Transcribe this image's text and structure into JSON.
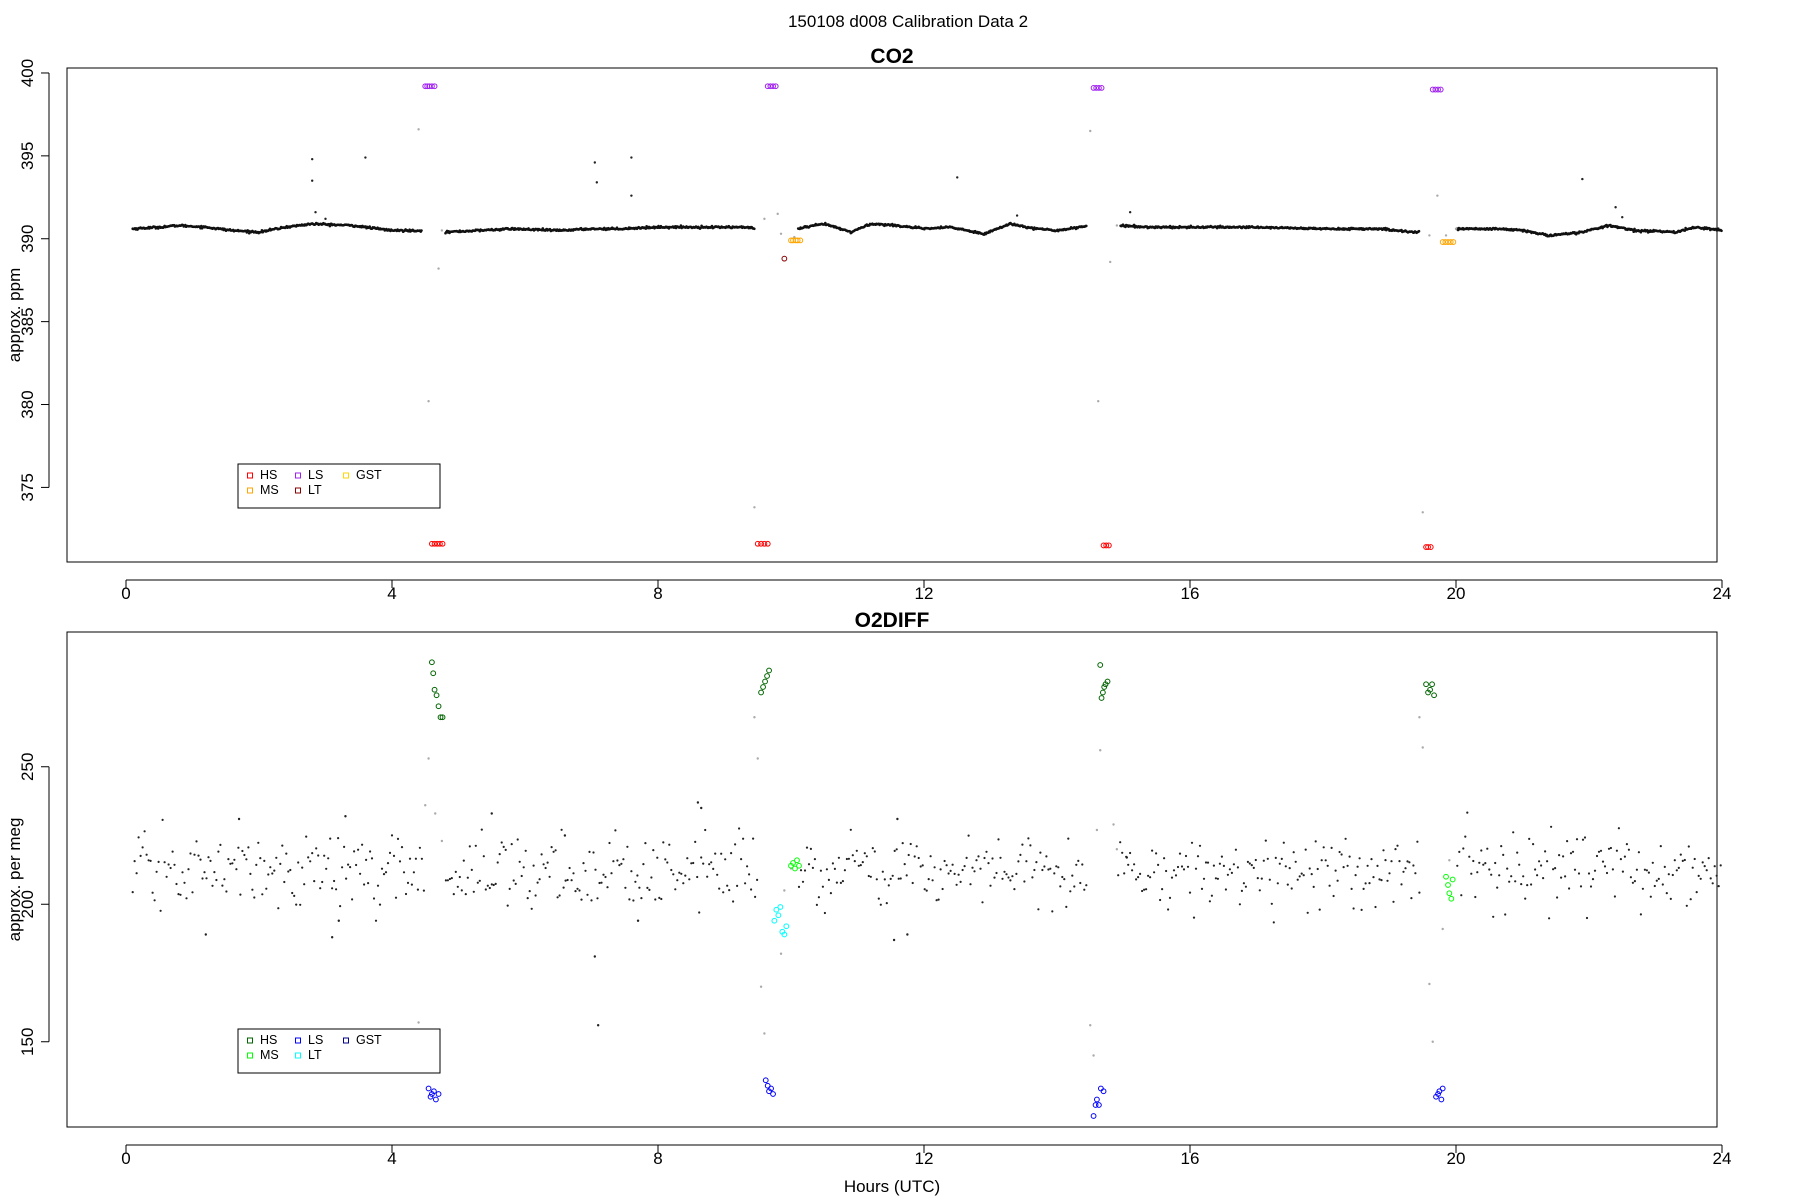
{
  "figure_title": "150108   d008   Calibration Data 2",
  "chart_data": [
    {
      "type": "scatter",
      "title": "CO2",
      "xlabel": "",
      "ylabel": "approx. ppm",
      "xlim": [
        0,
        24
      ],
      "ylim": [
        370.5,
        400.3
      ],
      "xticks": [
        0,
        4,
        8,
        12,
        16,
        20,
        24
      ],
      "yticks": [
        375,
        380,
        385,
        390,
        395,
        400
      ],
      "baseline": [
        [
          0.1,
          390.6
        ],
        [
          0.5,
          390.7
        ],
        [
          0.8,
          390.8
        ],
        [
          1.2,
          390.7
        ],
        [
          1.6,
          390.5
        ],
        [
          2.0,
          390.4
        ],
        [
          2.4,
          390.7
        ],
        [
          2.8,
          390.9
        ],
        [
          3.4,
          390.8
        ],
        [
          4.0,
          390.5
        ],
        [
          4.4,
          390.5
        ],
        [
          4.8,
          390.4
        ],
        [
          5.3,
          390.5
        ],
        [
          5.8,
          390.6
        ],
        [
          6.5,
          390.5
        ],
        [
          7.0,
          390.6
        ],
        [
          7.4,
          390.6
        ],
        [
          8.0,
          390.7
        ],
        [
          8.6,
          390.7
        ],
        [
          9.3,
          390.7
        ],
        [
          9.7,
          390.5
        ],
        [
          10.1,
          390.6
        ],
        [
          10.5,
          390.9
        ],
        [
          10.9,
          390.4
        ],
        [
          11.2,
          390.9
        ],
        [
          11.6,
          390.8
        ],
        [
          12.0,
          390.6
        ],
        [
          12.4,
          390.7
        ],
        [
          12.9,
          390.3
        ],
        [
          13.3,
          390.9
        ],
        [
          13.7,
          390.6
        ],
        [
          14.0,
          390.5
        ],
        [
          14.5,
          390.8
        ],
        [
          14.9,
          390.8
        ],
        [
          15.4,
          390.7
        ],
        [
          16.0,
          390.7
        ],
        [
          17.0,
          390.7
        ],
        [
          18.0,
          390.6
        ],
        [
          18.8,
          390.6
        ],
        [
          19.4,
          390.4
        ],
        [
          20.1,
          390.6
        ],
        [
          20.6,
          390.6
        ],
        [
          21.0,
          390.5
        ],
        [
          21.4,
          390.2
        ],
        [
          21.9,
          390.4
        ],
        [
          22.3,
          390.8
        ],
        [
          22.7,
          390.5
        ],
        [
          23.3,
          390.4
        ],
        [
          23.6,
          390.7
        ],
        [
          24.0,
          390.5
        ]
      ],
      "gaps": [
        [
          4.45,
          4.8
        ],
        [
          9.45,
          10.1
        ],
        [
          14.45,
          14.95
        ],
        [
          19.45,
          20.0
        ]
      ],
      "outliers": [
        [
          2.8,
          394.8
        ],
        [
          2.8,
          393.5
        ],
        [
          2.85,
          391.6
        ],
        [
          3.6,
          394.9
        ],
        [
          3.0,
          391.2
        ],
        [
          7.05,
          394.6
        ],
        [
          7.08,
          393.4
        ],
        [
          7.6,
          394.9
        ],
        [
          7.6,
          392.6
        ],
        [
          12.5,
          393.7
        ],
        [
          13.4,
          391.4
        ],
        [
          15.1,
          391.6
        ],
        [
          21.9,
          393.6
        ],
        [
          22.4,
          391.9
        ],
        [
          22.5,
          391.3
        ]
      ],
      "transition_points": [
        [
          4.4,
          396.6
        ],
        [
          4.55,
          380.2
        ],
        [
          4.7,
          388.2
        ],
        [
          4.75,
          390.5
        ],
        [
          9.45,
          373.8
        ],
        [
          9.6,
          391.2
        ],
        [
          9.8,
          391.5
        ],
        [
          9.85,
          390.3
        ],
        [
          10.05,
          390.1
        ],
        [
          14.5,
          396.5
        ],
        [
          14.62,
          380.2
        ],
        [
          14.8,
          388.6
        ],
        [
          14.9,
          390.8
        ],
        [
          19.5,
          373.5
        ],
        [
          19.6,
          390.2
        ],
        [
          19.72,
          392.6
        ],
        [
          19.85,
          390.2
        ],
        [
          20.0,
          390.6
        ]
      ],
      "series": [
        {
          "name": "HS",
          "color": "#ff0000",
          "points": [
            [
              4.6,
              371.6
            ],
            [
              4.64,
              371.6
            ],
            [
              4.68,
              371.6
            ],
            [
              4.72,
              371.6
            ],
            [
              4.76,
              371.6
            ],
            [
              9.5,
              371.6
            ],
            [
              9.55,
              371.6
            ],
            [
              9.6,
              371.6
            ],
            [
              9.65,
              371.6
            ],
            [
              14.7,
              371.5
            ],
            [
              14.74,
              371.5
            ],
            [
              14.78,
              371.5
            ],
            [
              19.55,
              371.4
            ],
            [
              19.58,
              371.4
            ],
            [
              19.62,
              371.4
            ]
          ]
        },
        {
          "name": "MS",
          "color": "#ffa500",
          "points": [
            [
              10.0,
              389.9
            ],
            [
              10.03,
              389.9
            ],
            [
              10.07,
              389.9
            ],
            [
              10.1,
              389.9
            ],
            [
              10.14,
              389.9
            ],
            [
              19.8,
              389.8
            ],
            [
              19.84,
              389.8
            ],
            [
              19.88,
              389.8
            ],
            [
              19.92,
              389.8
            ],
            [
              19.96,
              389.8
            ]
          ]
        },
        {
          "name": "LS",
          "color": "#a020f0",
          "points": [
            [
              4.5,
              399.2
            ],
            [
              4.53,
              399.2
            ],
            [
              4.56,
              399.2
            ],
            [
              4.6,
              399.2
            ],
            [
              4.64,
              399.2
            ],
            [
              9.65,
              399.2
            ],
            [
              9.69,
              399.2
            ],
            [
              9.73,
              399.2
            ],
            [
              9.77,
              399.2
            ],
            [
              14.55,
              399.1
            ],
            [
              14.59,
              399.1
            ],
            [
              14.63,
              399.1
            ],
            [
              14.67,
              399.1
            ],
            [
              19.65,
              399.0
            ],
            [
              19.69,
              399.0
            ],
            [
              19.73,
              399.0
            ],
            [
              19.77,
              399.0
            ]
          ]
        },
        {
          "name": "LT",
          "color": "#8b0000",
          "points": [
            [
              9.9,
              388.8
            ]
          ]
        },
        {
          "name": "GST",
          "color": "#ffd700",
          "points": []
        }
      ],
      "legend": [
        "HS",
        "LS",
        "GST",
        "MS",
        "LT"
      ],
      "legend_position": "bottom-left"
    },
    {
      "type": "scatter",
      "title": "O2DIFF",
      "xlabel": "Hours (UTC)",
      "ylabel": "approx. per meg",
      "xlim": [
        0,
        24
      ],
      "ylim": [
        119,
        299
      ],
      "xticks": [
        0,
        4,
        8,
        12,
        16,
        20,
        24
      ],
      "yticks": [
        150,
        200,
        250
      ],
      "noise": {
        "center": 212,
        "sd": 6.5,
        "step_hours": 0.03
      },
      "gaps": [
        [
          4.5,
          4.8
        ],
        [
          9.5,
          10.1
        ],
        [
          14.45,
          14.9
        ],
        [
          19.45,
          20.0
        ]
      ],
      "outliers": [
        [
          1.2,
          189
        ],
        [
          1.7,
          231
        ],
        [
          3.1,
          188
        ],
        [
          3.2,
          194
        ],
        [
          3.3,
          232
        ],
        [
          5.5,
          233
        ],
        [
          6.6,
          225
        ],
        [
          7.05,
          181
        ],
        [
          7.1,
          156
        ],
        [
          8.6,
          237
        ],
        [
          8.65,
          235
        ],
        [
          7.7,
          194
        ],
        [
          11.6,
          231
        ],
        [
          11.55,
          187
        ],
        [
          11.75,
          189
        ],
        [
          15.05,
          217
        ]
      ],
      "transition_points": [
        [
          4.4,
          157
        ],
        [
          4.5,
          236
        ],
        [
          4.55,
          253
        ],
        [
          4.65,
          233
        ],
        [
          4.75,
          223
        ],
        [
          9.45,
          268
        ],
        [
          9.5,
          253
        ],
        [
          9.55,
          170
        ],
        [
          9.6,
          153
        ],
        [
          9.85,
          182
        ],
        [
          9.9,
          205
        ],
        [
          10.0,
          213
        ],
        [
          14.5,
          156
        ],
        [
          14.55,
          145
        ],
        [
          14.6,
          227
        ],
        [
          14.65,
          256
        ],
        [
          14.85,
          229
        ],
        [
          14.9,
          220
        ],
        [
          19.45,
          268
        ],
        [
          19.5,
          257
        ],
        [
          19.6,
          171
        ],
        [
          19.65,
          150
        ],
        [
          19.8,
          191
        ],
        [
          19.9,
          216
        ]
      ],
      "series": [
        {
          "name": "HS",
          "color": "#006400",
          "points": [
            [
              4.6,
              288
            ],
            [
              4.62,
              284
            ],
            [
              4.64,
              278
            ],
            [
              4.67,
              276
            ],
            [
              4.7,
              272
            ],
            [
              4.73,
              268
            ],
            [
              4.76,
              268
            ],
            [
              9.55,
              277
            ],
            [
              9.58,
              279
            ],
            [
              9.61,
              281
            ],
            [
              9.64,
              283
            ],
            [
              9.67,
              285
            ],
            [
              14.65,
              287
            ],
            [
              14.67,
              275
            ],
            [
              14.69,
              277
            ],
            [
              14.71,
              279
            ],
            [
              14.73,
              280
            ],
            [
              14.76,
              281
            ],
            [
              19.55,
              280
            ],
            [
              19.58,
              277
            ],
            [
              19.61,
              278
            ],
            [
              19.64,
              280
            ],
            [
              19.67,
              276
            ]
          ]
        },
        {
          "name": "MS",
          "color": "#00ff00",
          "points": [
            [
              10.0,
              214
            ],
            [
              10.03,
              215
            ],
            [
              10.06,
              213
            ],
            [
              10.09,
              216
            ],
            [
              10.12,
              214
            ],
            [
              19.85,
              210
            ],
            [
              19.88,
              207
            ],
            [
              19.9,
              204
            ],
            [
              19.93,
              202
            ],
            [
              19.95,
              209
            ]
          ]
        },
        {
          "name": "LS",
          "color": "#0000ff",
          "points": [
            [
              4.55,
              133
            ],
            [
              4.58,
              130
            ],
            [
              4.6,
              131
            ],
            [
              4.63,
              132
            ],
            [
              4.66,
              129
            ],
            [
              4.7,
              131
            ],
            [
              9.62,
              136
            ],
            [
              9.65,
              134
            ],
            [
              9.67,
              132
            ],
            [
              9.7,
              133
            ],
            [
              9.73,
              131
            ],
            [
              14.55,
              123
            ],
            [
              14.58,
              127
            ],
            [
              14.6,
              129
            ],
            [
              14.63,
              127
            ],
            [
              14.66,
              133
            ],
            [
              14.7,
              132
            ],
            [
              19.7,
              130
            ],
            [
              19.73,
              131
            ],
            [
              19.75,
              132
            ],
            [
              19.78,
              129
            ],
            [
              19.8,
              133
            ]
          ]
        },
        {
          "name": "LT",
          "color": "#00ffff",
          "points": [
            [
              9.75,
              194
            ],
            [
              9.78,
              198
            ],
            [
              9.81,
              196
            ],
            [
              9.84,
              199
            ],
            [
              9.87,
              190
            ],
            [
              9.9,
              189
            ],
            [
              9.93,
              192
            ]
          ]
        },
        {
          "name": "GST",
          "color": "#00008b",
          "points": []
        }
      ],
      "legend": [
        "HS",
        "LS",
        "GST",
        "MS",
        "LT"
      ],
      "legend_position": "bottom-left"
    }
  ]
}
